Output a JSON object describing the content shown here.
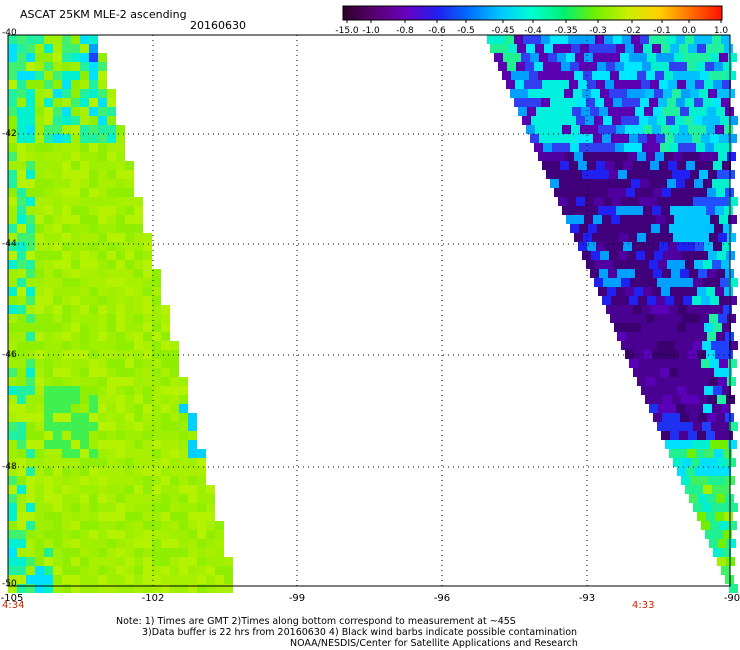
{
  "header": {
    "title": "ASCAT 25KM MLE-2 ascending",
    "date": "20160630"
  },
  "colorbar": {
    "labels": [
      "-15.0",
      "-1.0",
      "-0.8",
      "-0.6",
      "-0.5",
      "-0.45",
      "-0.4",
      "-0.35",
      "-0.3",
      "-0.2",
      "-0.1",
      "0.0",
      "1.0"
    ],
    "colors": [
      "#2a0028",
      "#5a0070",
      "#6a00c0",
      "#2020f0",
      "#0070ff",
      "#00c8ff",
      "#00ffd0",
      "#00f070",
      "#70f000",
      "#c8f000",
      "#ffd000",
      "#ff7000",
      "#ff1000"
    ]
  },
  "axes": {
    "x_ticks": [
      "-105",
      "-102",
      "-99",
      "-96",
      "-93",
      "-90"
    ],
    "y_ticks": [
      "-40",
      "-42",
      "-44",
      "-46",
      "-48",
      "-50"
    ]
  },
  "swaths": {
    "left_time": "4:34",
    "right_time": "4:33"
  },
  "notes": {
    "line1": "Note: 1) Times are GMT 2)Times along bottom correspond to measurement at ~45S",
    "line2": "3)Data buffer is 22 hrs from 20160630 4) Black wind barbs indicate possible contamination",
    "line3": "NOAA/NESDIS/Center for Satellite Applications and Research"
  }
}
